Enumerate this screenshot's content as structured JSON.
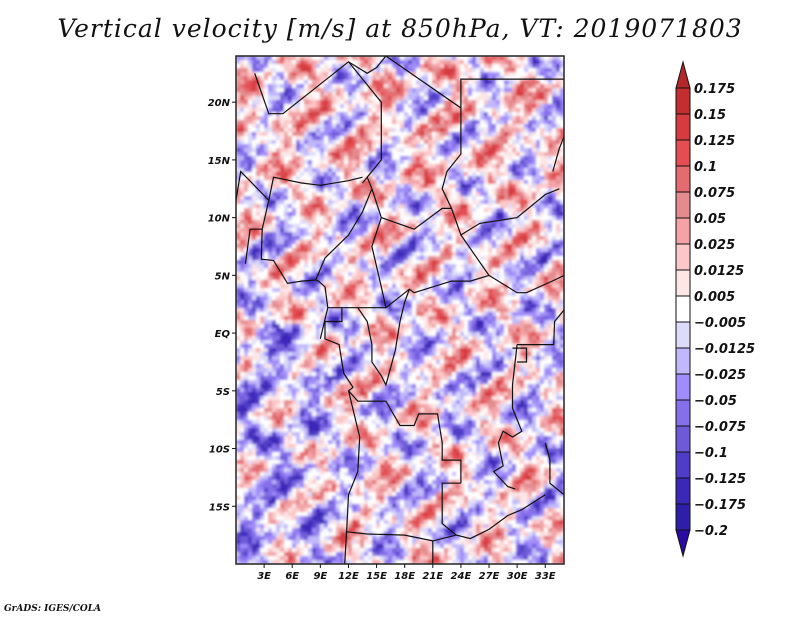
{
  "title": "Vertical velocity [m/s] at 850hPa, VT: 2019071803",
  "footer": "GrADS: IGES/COLA",
  "chart_data": {
    "type": "heatmap",
    "title": "Vertical velocity [m/s] at 850hPa, VT: 2019071803",
    "variable": "Vertical velocity",
    "units": "m/s",
    "level": "850hPa",
    "valid_time": "2019071803",
    "xlabel": "",
    "ylabel": "",
    "lon_range": [
      0,
      35
    ],
    "lat_range": [
      -20,
      24
    ],
    "x_ticks": [
      {
        "value": 3,
        "label": "3E"
      },
      {
        "value": 6,
        "label": "6E"
      },
      {
        "value": 9,
        "label": "9E"
      },
      {
        "value": 12,
        "label": "12E"
      },
      {
        "value": 15,
        "label": "15E"
      },
      {
        "value": 18,
        "label": "18E"
      },
      {
        "value": 21,
        "label": "21E"
      },
      {
        "value": 24,
        "label": "24E"
      },
      {
        "value": 27,
        "label": "27E"
      },
      {
        "value": 30,
        "label": "30E"
      },
      {
        "value": 33,
        "label": "33E"
      }
    ],
    "y_ticks": [
      {
        "value": 20,
        "label": "20N"
      },
      {
        "value": 15,
        "label": "15N"
      },
      {
        "value": 10,
        "label": "10N"
      },
      {
        "value": 5,
        "label": "5N"
      },
      {
        "value": 0,
        "label": "EQ"
      },
      {
        "value": -5,
        "label": "5S"
      },
      {
        "value": -10,
        "label": "10S"
      },
      {
        "value": -15,
        "label": "15S"
      }
    ],
    "grid": false,
    "legend": {
      "placement": "right",
      "type": "colorbar",
      "levels": [
        "0.175",
        "0.15",
        "0.125",
        "0.1",
        "0.075",
        "0.05",
        "0.025",
        "0.0125",
        "0.005",
        "-0.005",
        "-0.0125",
        "-0.025",
        "-0.05",
        "-0.075",
        "-0.1",
        "-0.125",
        "-0.175",
        "-0.2"
      ],
      "colors": [
        "#b3262a",
        "#c32f30",
        "#d63b3f",
        "#e44d51",
        "#e46b6f",
        "#e48b8f",
        "#f3a3a6",
        "#fcc7c8",
        "#fde6e6",
        "#ffffff",
        "#dcdcfa",
        "#c0b8fa",
        "#a08cfa",
        "#8670ea",
        "#6e5ad8",
        "#4f3cc8",
        "#3c28b8",
        "#2e1ea8",
        "#25109c"
      ],
      "over_color": "#b3262a",
      "under_color": "#2a0aa0"
    },
    "description": "Shaded field of 850hPa vertical velocity over central Africa with country boundaries; mixed small-scale red (positive) and blue (negative) patterns."
  }
}
